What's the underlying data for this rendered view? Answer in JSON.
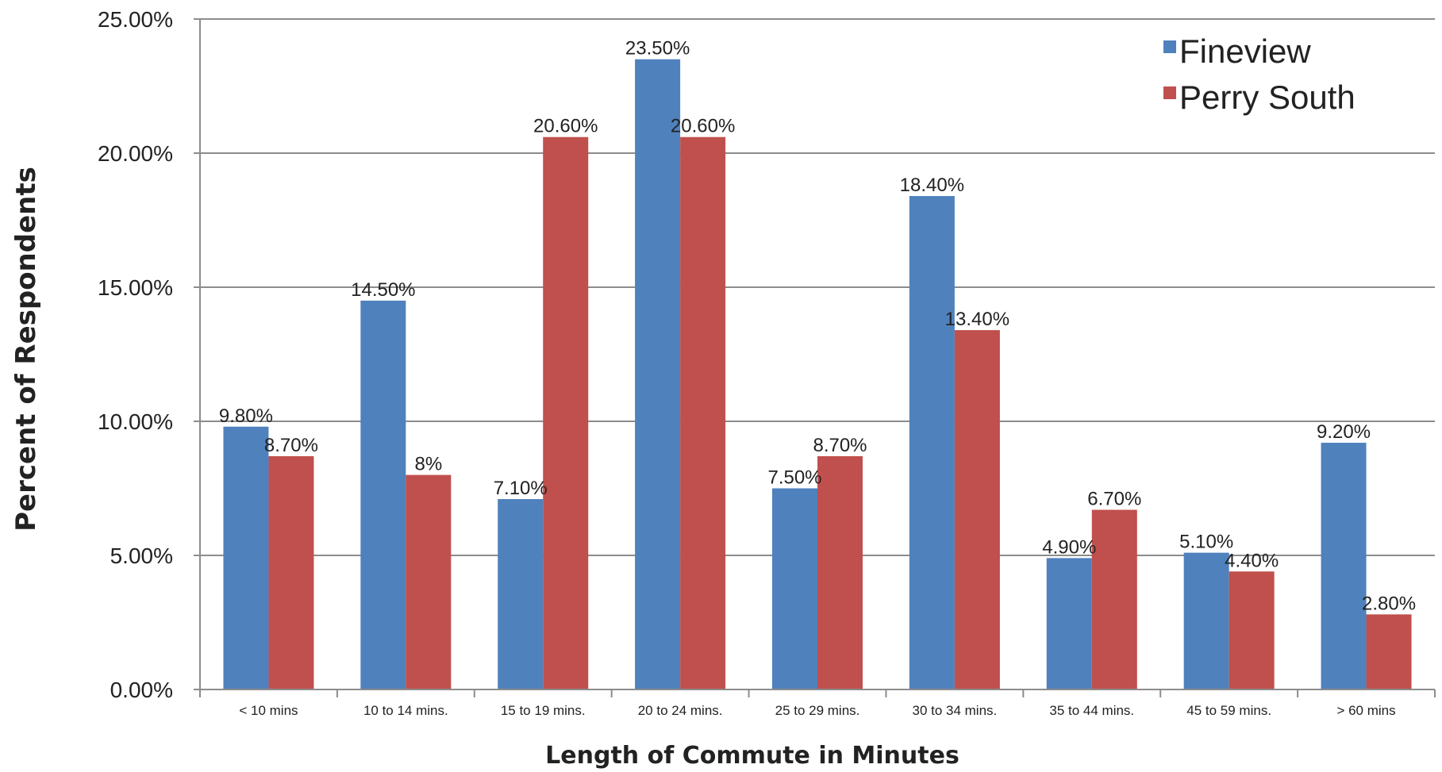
{
  "chart_data": {
    "type": "bar",
    "title": "",
    "xlabel": "Length of Commute in Minutes",
    "ylabel": "Percent of Respondents",
    "ylim": [
      0,
      25
    ],
    "yticks": [
      "0.00%",
      "5.00%",
      "10.00%",
      "15.00%",
      "20.00%",
      "25.00%"
    ],
    "grid": true,
    "legend_position": "top-right",
    "categories": [
      "< 10 mins",
      "10 to 14 mins.",
      "15 to 19 mins.",
      "20 to 24 mins.",
      "25 to 29 mins.",
      "30 to 34 mins.",
      "35 to 44 mins.",
      "45 to 59 mins.",
      "> 60 mins"
    ],
    "series": [
      {
        "name": "Fineview",
        "color": "#4F81BD",
        "values": [
          9.8,
          14.5,
          7.1,
          23.5,
          7.5,
          18.4,
          4.9,
          5.1,
          9.2
        ],
        "labels": [
          "9.80%",
          "14.50%",
          "7.10%",
          "23.50%",
          "7.50%",
          "18.40%",
          "4.90%",
          "5.10%",
          "9.20%"
        ]
      },
      {
        "name": "Perry South",
        "color": "#C0504D",
        "values": [
          8.7,
          8.0,
          20.6,
          20.6,
          8.7,
          13.4,
          6.7,
          4.4,
          2.8
        ],
        "labels": [
          "8.70%",
          "8%",
          "20.60%",
          "20.60%",
          "8.70%",
          "13.40%",
          "6.70%",
          "4.40%",
          "2.80%"
        ]
      }
    ]
  }
}
